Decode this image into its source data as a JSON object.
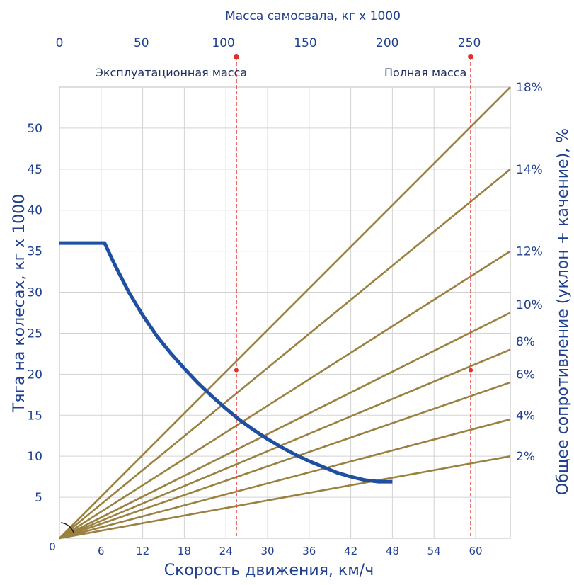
{
  "chart_data": {
    "type": "line",
    "colors": {
      "axis_text": "#1f3f8f",
      "thrust_curve": "#1f4fa0",
      "resistance_lines": "#9b8140",
      "marker_lines": "#e0302a",
      "grid": "#d3d3d3"
    },
    "xlabel": "Скорость движения, км/ч",
    "ylabel": "Тяга на колесах, кг x 1000",
    "ylabel_right": "Общее сопротивление (уклон + качение), %",
    "top_axis_label": "Масса самосвала, кг x 1000",
    "x_range": [
      0,
      65
    ],
    "y_range": [
      0,
      55
    ],
    "top_range": [
      0,
      275
    ],
    "x_ticks": [
      "6",
      "12",
      "18",
      "24",
      "30",
      "36",
      "42",
      "48",
      "54",
      "60"
    ],
    "x_tick_values": [
      6,
      12,
      18,
      24,
      30,
      36,
      42,
      48,
      54,
      60
    ],
    "origin_label": "0",
    "y_ticks": [
      "5",
      "10",
      "15",
      "20",
      "25",
      "30",
      "35",
      "40",
      "45",
      "50"
    ],
    "y_tick_values": [
      5,
      10,
      15,
      20,
      25,
      30,
      35,
      40,
      45,
      50
    ],
    "top_ticks": [
      "0",
      "50",
      "100",
      "150",
      "200",
      "250"
    ],
    "top_tick_values": [
      0,
      50,
      100,
      150,
      200,
      250
    ],
    "thrust_curve": {
      "x": [
        0,
        6,
        6.5,
        8,
        10,
        12,
        14,
        16,
        18,
        20,
        22,
        24,
        26,
        28,
        30,
        32,
        34,
        36,
        38,
        40,
        42,
        44,
        46,
        48
      ],
      "y": [
        36,
        36,
        36,
        33.3,
        30,
        27.2,
        24.7,
        22.6,
        20.7,
        18.9,
        17.3,
        15.8,
        14.4,
        13.2,
        12.1,
        11.1,
        10.2,
        9.4,
        8.7,
        8.0,
        7.5,
        7.1,
        6.9,
        6.9
      ]
    },
    "resistance_lines": [
      {
        "label": "18%",
        "end_y": 55
      },
      {
        "label": "14%",
        "end_y": 45
      },
      {
        "label": "12%",
        "end_y": 35
      },
      {
        "label": "10%",
        "end_y": 27.5
      },
      {
        "label": "8%",
        "end_y": 23
      },
      {
        "label": "6%",
        "end_y": 19
      },
      {
        "label": "4%",
        "end_y": 14.5
      },
      {
        "label": "2%",
        "end_y": 10
      }
    ],
    "right_label_y": [
      55,
      45,
      35,
      28.5,
      24,
      20,
      15,
      10
    ],
    "markers": [
      {
        "label": "Эксплуатационная масса",
        "mass": 106,
        "speed": 25.5,
        "point_y": 20.5
      },
      {
        "label": "Полная масса",
        "mass": 245,
        "speed": 59.3,
        "point_y": 20.5
      }
    ]
  }
}
